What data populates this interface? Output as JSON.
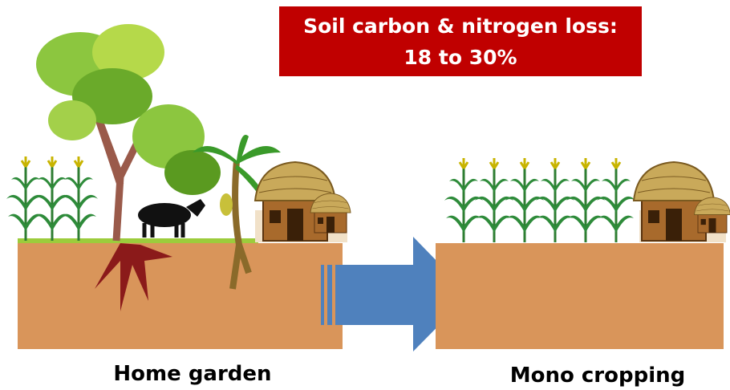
{
  "banner": {
    "lines": [
      "Soil carbon & nitrogen loss:",
      "18 to 30%"
    ]
  },
  "left_label": "Home garden",
  "right_label": "Mono cropping"
}
